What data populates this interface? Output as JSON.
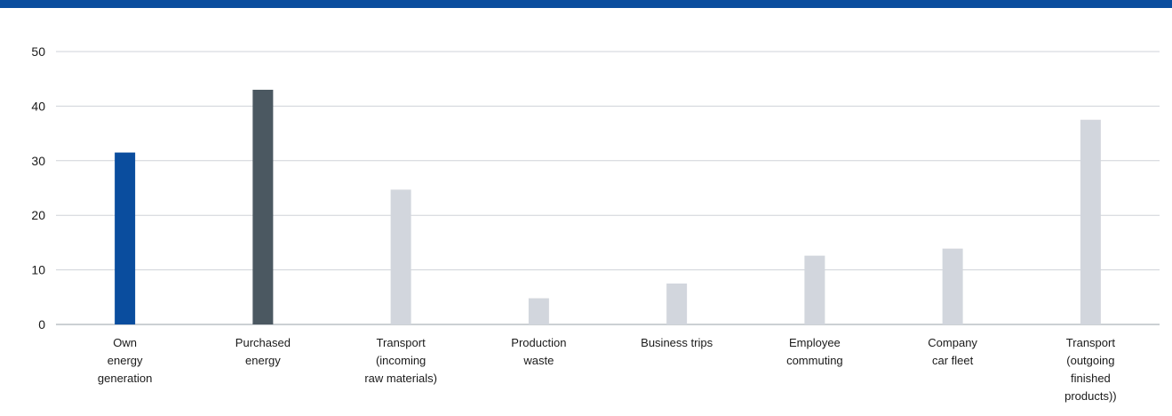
{
  "colors": {
    "top_bar": "#0a4d9e",
    "grid": "#cfd3d8",
    "axis": "#9aa1a8"
  },
  "chart_data": {
    "type": "bar",
    "categories": [
      [
        "Own",
        "energy",
        "generation"
      ],
      [
        "Purchased",
        "energy"
      ],
      [
        "Transport",
        "(incoming",
        "raw materials)"
      ],
      [
        "Production",
        "waste"
      ],
      [
        "Business trips"
      ],
      [
        "Employee",
        "commuting"
      ],
      [
        "Company",
        "car fleet"
      ],
      [
        "Transport",
        "(outgoing",
        "finished",
        "products))"
      ]
    ],
    "values": [
      31.5,
      43.0,
      24.7,
      4.8,
      7.5,
      12.6,
      13.9,
      37.5
    ],
    "bar_colors": [
      "#0a4d9e",
      "#4b5861",
      "#d2d6dd",
      "#d2d6dd",
      "#d2d6dd",
      "#d2d6dd",
      "#d2d6dd",
      "#d2d6dd"
    ],
    "title": "",
    "xlabel": "",
    "ylabel": "",
    "ylim": [
      0,
      50
    ],
    "yticks": [
      0,
      10,
      20,
      30,
      40,
      50
    ],
    "grid": true
  }
}
